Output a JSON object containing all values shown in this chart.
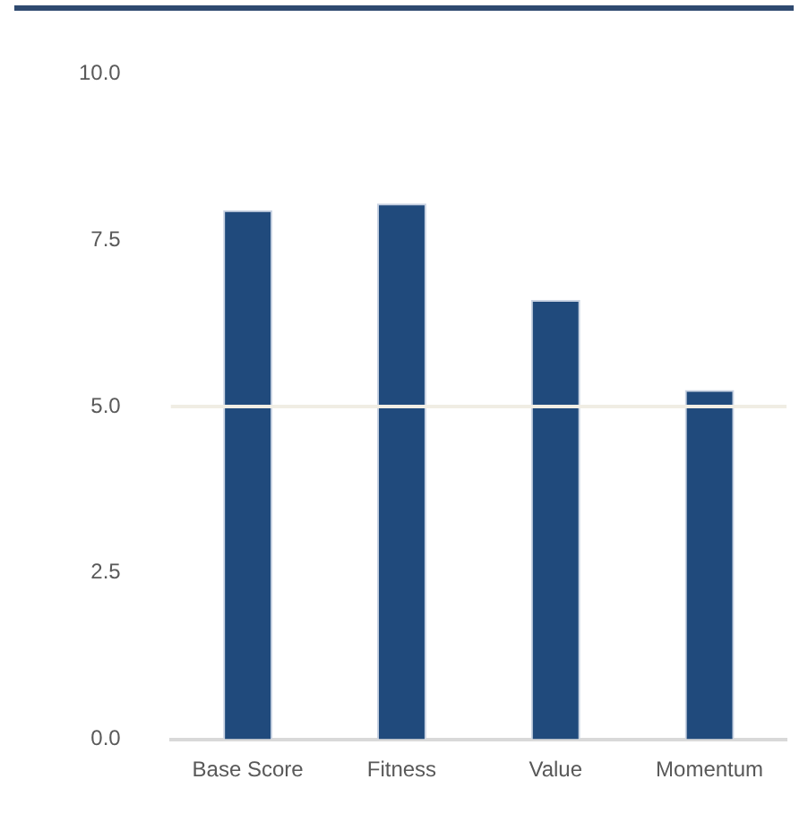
{
  "chart_data": {
    "type": "bar",
    "categories": [
      "Base Score",
      "Fitness",
      "Value",
      "Momentum"
    ],
    "values": [
      7.95,
      8.05,
      6.6,
      5.25
    ],
    "color": "#204a7c",
    "ylim": [
      0,
      10
    ],
    "yticks": [
      {
        "value": 0,
        "label": "0.0"
      },
      {
        "value": 2.5,
        "label": "2.5"
      },
      {
        "value": 5,
        "label": "5.0"
      },
      {
        "value": 7.5,
        "label": "7.5"
      },
      {
        "value": 10,
        "label": "10.0"
      }
    ],
    "grid": false,
    "legend": false,
    "ref_lines": [
      {
        "axis": "y",
        "value": 5,
        "color": "#f0ede4"
      }
    ]
  }
}
